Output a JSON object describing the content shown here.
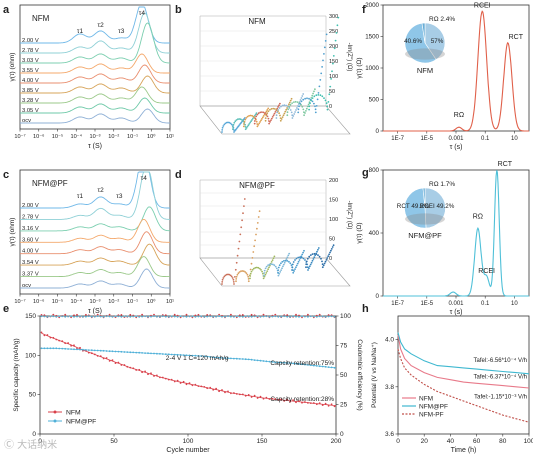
{
  "panel_labels": [
    "a",
    "b",
    "c",
    "d",
    "e",
    "f",
    "g",
    "h"
  ],
  "chart_data": [
    {
      "id": "a",
      "type": "line",
      "inset_label": "NFM",
      "xlabel": "τ (S)",
      "ylabel": "γ(τ) (ohm)",
      "x_tick_labels": [
        "10^-7",
        "10^-6",
        "10^-5",
        "10^-4",
        "10^-3",
        "10^-2",
        "10^-1",
        "10^0",
        "10^1"
      ],
      "log_x": true,
      "xlim": [
        -7,
        1
      ],
      "peak_labels": [
        "τ1",
        "τ2",
        "τ3",
        "τ4"
      ],
      "peak_positions_log_tau": [
        -3.8,
        -2.7,
        -1.6,
        -0.5
      ],
      "series_labels": [
        "2.00 V",
        "2.78 V",
        "3.03 V",
        "3.55 V",
        "4.00 V",
        "3.85 V",
        "3.28 V",
        "3.05 V",
        "ocv"
      ],
      "colors": [
        "#6fb8e8",
        "#8fd0d6",
        "#7ccfb0",
        "#f4a86b",
        "#e98f6f",
        "#d7a45a",
        "#9bc98a",
        "#6ec9a8",
        "#8fb0d6"
      ]
    },
    {
      "id": "b",
      "type": "scatter",
      "style": "3d-nyquist",
      "inset_label": "NFM",
      "ylabel": "-Im(Z'') (Ω)",
      "z_ticks": [
        0,
        50,
        100,
        150,
        200,
        250,
        300
      ],
      "colors": [
        "#59a8d8",
        "#5fc0b8",
        "#e0a050",
        "#d06a5a",
        "#c9a050",
        "#8fb8d8",
        "#7fc8a0",
        "#4f9fcf",
        "#3fbfaf"
      ]
    },
    {
      "id": "c",
      "type": "line",
      "inset_label": "NFM@PF",
      "xlabel": "τ (S)",
      "ylabel": "γ(τ) (ohm)",
      "x_tick_labels": [
        "10^-7",
        "10^-6",
        "10^-5",
        "10^-4",
        "10^-3",
        "10^-2",
        "10^-1",
        "10^0",
        "10^1"
      ],
      "log_x": true,
      "xlim": [
        -7,
        1
      ],
      "peak_labels": [
        "τ1",
        "τ2",
        "τ3",
        "τ4"
      ],
      "peak_positions_log_tau": [
        -3.8,
        -2.7,
        -1.7,
        -0.4
      ],
      "series_labels": [
        "2.00 V",
        "2.78 V",
        "3.16 V",
        "3.60 V",
        "4.00 V",
        "3.54 V",
        "3.37 V",
        "ocv"
      ],
      "colors": [
        "#6fb8e8",
        "#8fd0d6",
        "#7ccfb0",
        "#f4a86b",
        "#e98f6f",
        "#d7a45a",
        "#9bc98a",
        "#8fb0d6"
      ]
    },
    {
      "id": "d",
      "type": "scatter",
      "style": "3d-nyquist",
      "inset_label": "NFM@PF",
      "ylabel": "-Im(Z'') (Ω)",
      "z_ticks": [
        0,
        50,
        100,
        150,
        200
      ],
      "colors": [
        "#c9705a",
        "#d9a060",
        "#a0b860",
        "#7fb8d8",
        "#4f9fcf",
        "#3a8ac0",
        "#2c6ea8"
      ]
    },
    {
      "id": "e",
      "type": "line",
      "xlabel": "Cycle number",
      "ylabel": "Specific capacity (mAh/g)",
      "y2label": "Coulombic efficiency (%)",
      "xlim": [
        0,
        200
      ],
      "ylim": [
        0,
        150
      ],
      "y2lim": [
        0,
        100
      ],
      "x_ticks": [
        0,
        50,
        100,
        150,
        200
      ],
      "y_ticks": [
        0,
        50,
        100,
        150
      ],
      "y2_ticks": [
        0,
        25,
        50,
        75,
        100
      ],
      "annotation": "2-4 V  1 C=120 mAh/g",
      "retention_labels": [
        "Capcity retention:75%",
        "Capcity retention:28%"
      ],
      "series": [
        {
          "name": "NFM",
          "color": "#d9404a",
          "x": [
            1,
            10,
            20,
            30,
            40,
            50,
            60,
            70,
            80,
            90,
            100,
            110,
            120,
            130,
            140,
            150,
            160,
            170,
            180,
            190,
            200
          ],
          "values": [
            128,
            121,
            114,
            106,
            99,
            92,
            85,
            79,
            73,
            68,
            64,
            60,
            56,
            52,
            49,
            46,
            44,
            42,
            40,
            38,
            36
          ]
        },
        {
          "name": "NFM@PF",
          "color": "#4fb0d8",
          "x": [
            1,
            10,
            20,
            30,
            40,
            50,
            60,
            70,
            80,
            90,
            100,
            110,
            120,
            130,
            140,
            150,
            160,
            170,
            180,
            190,
            200
          ],
          "values": [
            109,
            109,
            108,
            107,
            106,
            105,
            104,
            103,
            102,
            101,
            100,
            99,
            97,
            96,
            95,
            93,
            91,
            90,
            88,
            86,
            84
          ]
        },
        {
          "name": "NFM CE",
          "color": "#d9404a",
          "axis": "y2",
          "values_pct": 100
        },
        {
          "name": "NFM@PF CE",
          "color": "#4fb0d8",
          "axis": "y2",
          "values_pct": 99.5
        }
      ]
    },
    {
      "id": "f",
      "type": "line",
      "inset_label": "NFM",
      "xlabel": "τ (s)",
      "ylabel": "γ(τ) (Ω)",
      "x_tick_labels": [
        "1E-7",
        "1E-5",
        "0.001",
        "0.1",
        "10"
      ],
      "log_x": true,
      "xlim": [
        -8,
        2
      ],
      "ylim": [
        0,
        2000
      ],
      "y_ticks": [
        0,
        500,
        1000,
        1500,
        2000
      ],
      "peak_labels": [
        "RΩ",
        "RCEI",
        "RCT"
      ],
      "pie": [
        {
          "label": "RCT",
          "pct": 40.6,
          "color": "#a8cde6"
        },
        {
          "label": "RCEI",
          "pct": 57,
          "color": "#8fc6e8"
        },
        {
          "label": "RΩ",
          "pct": 2.4,
          "color": "#6aaed6"
        }
      ],
      "pie_texts": [
        "RΩ 2.4%",
        "40.6%",
        "57%"
      ],
      "color": "#e0604a"
    },
    {
      "id": "g",
      "type": "line",
      "inset_label": "NFM@PF",
      "xlabel": "τ (s)",
      "ylabel": "γ(τ) (Ω)",
      "x_tick_labels": [
        "1E-7",
        "1E-5",
        "0.001",
        "0.1",
        "10"
      ],
      "log_x": true,
      "xlim": [
        -8,
        2
      ],
      "ylim": [
        0,
        800
      ],
      "y_ticks": [
        0,
        400,
        800
      ],
      "peak_labels": [
        "RΩ",
        "RCEI",
        "RCT"
      ],
      "pie": [
        {
          "label": "RCT",
          "pct": 49.2,
          "color": "#a8cde6"
        },
        {
          "label": "RCEI",
          "pct": 49.2,
          "color": "#8fc6e8"
        },
        {
          "label": "RΩ",
          "pct": 1.7,
          "color": "#6aaed6"
        }
      ],
      "pie_texts": [
        "RΩ 1.7%",
        "RCT 49.2%",
        "RCEI 49.2%"
      ],
      "color": "#4fc0d8"
    },
    {
      "id": "h",
      "type": "line",
      "xlabel": "Time (h)",
      "ylabel": "Potential (V vs Na/Na⁺)",
      "xlim": [
        0,
        100
      ],
      "ylim": [
        3.6,
        4.1
      ],
      "y_ticks": [
        3.6,
        3.8,
        4.0
      ],
      "x_ticks": [
        0,
        20,
        40,
        60,
        80,
        100
      ],
      "tafel_labels": [
        "Tafel:-6.56*10⁻⁴ V/h",
        "Tafel:-6.37*10⁻⁴ V/h",
        "Tafel:-1.15*10⁻³ V/h"
      ],
      "series": [
        {
          "name": "NFM",
          "color": "#e87a8a",
          "x": [
            0,
            2,
            5,
            10,
            20,
            30,
            40,
            50,
            60,
            70,
            80,
            90,
            100
          ],
          "values": [
            4.02,
            3.96,
            3.92,
            3.89,
            3.86,
            3.84,
            3.83,
            3.82,
            3.815,
            3.81,
            3.805,
            3.8,
            3.795
          ]
        },
        {
          "name": "NFM@PF",
          "color": "#3fb8d0",
          "x": [
            0,
            2,
            5,
            10,
            20,
            30,
            40,
            50,
            60,
            70,
            80,
            90,
            100
          ],
          "values": [
            4.03,
            3.99,
            3.96,
            3.94,
            3.91,
            3.89,
            3.885,
            3.88,
            3.875,
            3.87,
            3.865,
            3.86,
            3.855
          ]
        },
        {
          "name": "NFM-PF",
          "color": "#c0504a",
          "dashed": true,
          "x": [
            0,
            2,
            5,
            10,
            20,
            30,
            40,
            50,
            60,
            70,
            80,
            90,
            100
          ],
          "values": [
            3.96,
            3.92,
            3.88,
            3.85,
            3.81,
            3.78,
            3.76,
            3.74,
            3.72,
            3.7,
            3.68,
            3.665,
            3.65
          ]
        }
      ]
    }
  ],
  "watermark": "Ⓒ 大话纳米"
}
